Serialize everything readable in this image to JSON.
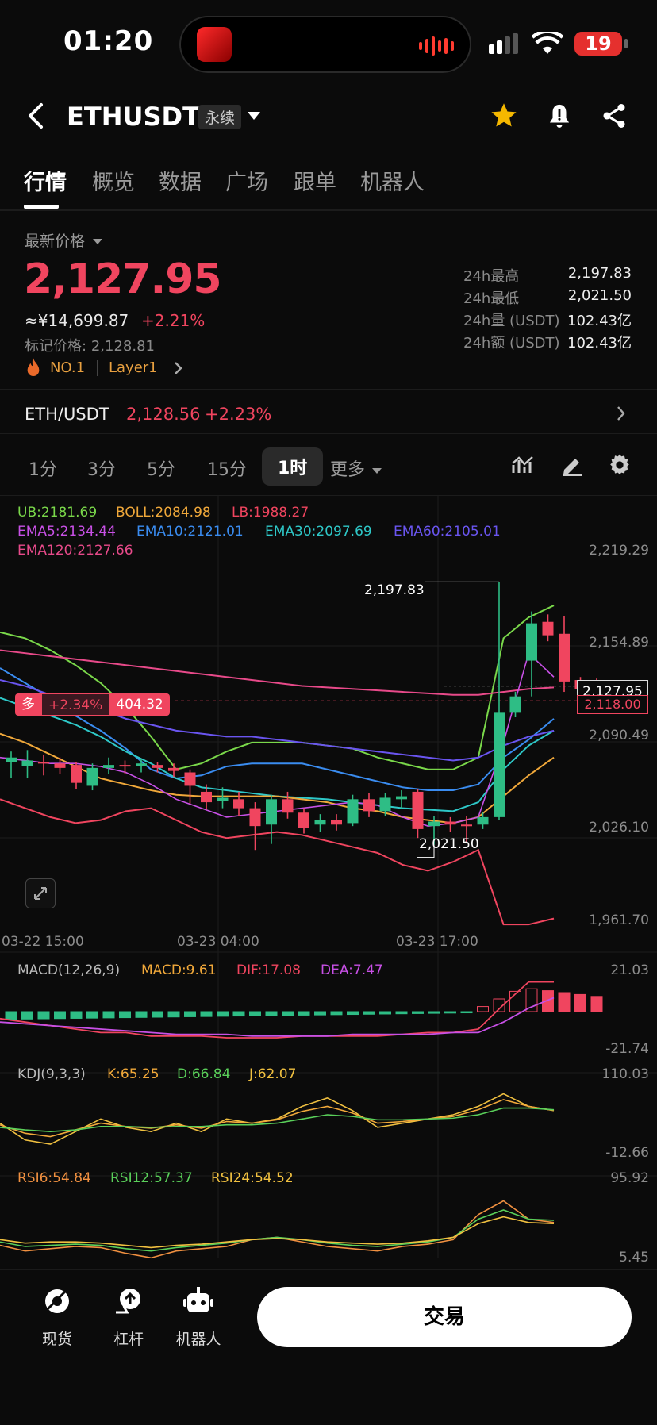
{
  "status_bar": {
    "time": "01:20",
    "battery": "19"
  },
  "header": {
    "symbol": "ETHUSDT",
    "contract_type": "永续"
  },
  "tabs": [
    {
      "label": "行情",
      "active": true
    },
    {
      "label": "概览"
    },
    {
      "label": "数据"
    },
    {
      "label": "广场"
    },
    {
      "label": "跟单"
    },
    {
      "label": "机器人"
    }
  ],
  "price": {
    "latest_label": "最新价格",
    "last": "2,127.95",
    "cny": "≈¥14,699.87",
    "change": "+2.21%",
    "mark_label": "标记价格:",
    "mark": "2,128.81",
    "rank": "NO.1",
    "tag": "Layer1",
    "stats": [
      {
        "label": "24h最高",
        "value": "2,197.83"
      },
      {
        "label": "24h最低",
        "value": "2,021.50"
      },
      {
        "label": "24h量 (USDT)",
        "value": "102.43亿"
      },
      {
        "label": "24h额 (USDT)",
        "value": "102.43亿"
      }
    ]
  },
  "spot_pair": {
    "name": "ETH/USDT",
    "price": "2,128.56",
    "change": "+2.23%"
  },
  "intervals": {
    "items": [
      "1分",
      "3分",
      "5分",
      "15分",
      "1时"
    ],
    "active": "1时",
    "more": "更多"
  },
  "indicators": {
    "boll": {
      "ub": "UB:2181.69",
      "boll": "BOLL:2084.98",
      "lb": "LB:1988.27"
    },
    "ema": {
      "ema5": "EMA5:2134.44",
      "ema10": "EMA10:2121.01",
      "ema30": "EMA30:2097.69",
      "ema60": "EMA60:2105.01",
      "ema120": "EMA120:2127.66"
    },
    "macd": {
      "name": "MACD(12,26,9)",
      "macd": "MACD:9.61",
      "dif": "DIF:17.08",
      "dea": "DEA:7.47",
      "ymax": "21.03",
      "ymin": "-21.74"
    },
    "kdj": {
      "name": "KDJ(9,3,3)",
      "k": "K:65.25",
      "d": "D:66.84",
      "j": "J:62.07",
      "ymax": "110.03",
      "ymin": "-12.66"
    },
    "rsi": {
      "rsi6": "RSI6:54.84",
      "rsi12": "RSI12:57.37",
      "rsi24": "RSI24:54.52",
      "ymax": "95.92",
      "ymin": "5.45"
    }
  },
  "chart_data": {
    "type": "candlestick",
    "y_ticks": [
      "2,219.29",
      "2,154.89",
      "2,090.49",
      "2,026.10",
      "1,961.70"
    ],
    "x_ticks": [
      "03-22 15:00",
      "03-23 04:00",
      "03-23 17:00"
    ],
    "ylim": [
      1961.7,
      2219.29
    ],
    "high_label": "2,197.83",
    "low_label": "2,021.50",
    "last_price_label": "2,127.95",
    "position_price_label": "2,118.00",
    "position": {
      "side": "多",
      "pnl_pct": "+2.34%",
      "pnl": "404.32"
    },
    "candles": [
      [
        2077,
        2080,
        2066,
        2084
      ],
      [
        2074,
        2078,
        2066,
        2085
      ],
      [
        2077,
        2076,
        2068,
        2082
      ],
      [
        2076,
        2073,
        2069,
        2080
      ],
      [
        2075,
        2063,
        2059,
        2077
      ],
      [
        2061,
        2073,
        2058,
        2076
      ],
      [
        2073,
        2075,
        2069,
        2080
      ],
      [
        2075,
        2074,
        2069,
        2078
      ],
      [
        2074,
        2076,
        2070,
        2079
      ],
      [
        2075,
        2073,
        2070,
        2077
      ],
      [
        2073,
        2071,
        2067,
        2076
      ],
      [
        2070,
        2061,
        2049,
        2072
      ],
      [
        2057,
        2050,
        2045,
        2062
      ],
      [
        2051,
        2053,
        2046,
        2060
      ],
      [
        2052,
        2046,
        2041,
        2057
      ],
      [
        2046,
        2034,
        2018,
        2050
      ],
      [
        2035,
        2052,
        2022,
        2055
      ],
      [
        2052,
        2043,
        2039,
        2057
      ],
      [
        2043,
        2033,
        2029,
        2046
      ],
      [
        2035,
        2038,
        2030,
        2042
      ],
      [
        2038,
        2035,
        2031,
        2042
      ],
      [
        2036,
        2052,
        2034,
        2055
      ],
      [
        2052,
        2044,
        2040,
        2056
      ],
      [
        2044,
        2053,
        2041,
        2056
      ],
      [
        2052,
        2054,
        2046,
        2058
      ],
      [
        2057,
        2032,
        2026,
        2059
      ],
      [
        2034,
        2037,
        2021.5,
        2041
      ],
      [
        2037,
        2035,
        2030,
        2040
      ],
      [
        2035,
        2034,
        2023,
        2041
      ],
      [
        2035,
        2040,
        2032,
        2043
      ],
      [
        2040,
        2110,
        2038,
        2197.83
      ],
      [
        2110,
        2121,
        2107,
        2124
      ],
      [
        2145,
        2170,
        2121,
        2178
      ],
      [
        2171,
        2162,
        2158,
        2176
      ],
      [
        2163,
        2131,
        2124,
        2175
      ],
      [
        2132,
        2126,
        2120,
        2134
      ],
      [
        2129,
        2128,
        2121,
        2133
      ]
    ]
  },
  "bottom_nav": [
    {
      "label": "现货",
      "icon": "spot-icon"
    },
    {
      "label": "杠杆",
      "icon": "margin-icon"
    },
    {
      "label": "机器人",
      "icon": "robot-icon"
    }
  ],
  "trade_button": "交易",
  "colors": {
    "up": "#2ebd85",
    "down": "#f0455f",
    "bg": "#0b0b0b"
  }
}
